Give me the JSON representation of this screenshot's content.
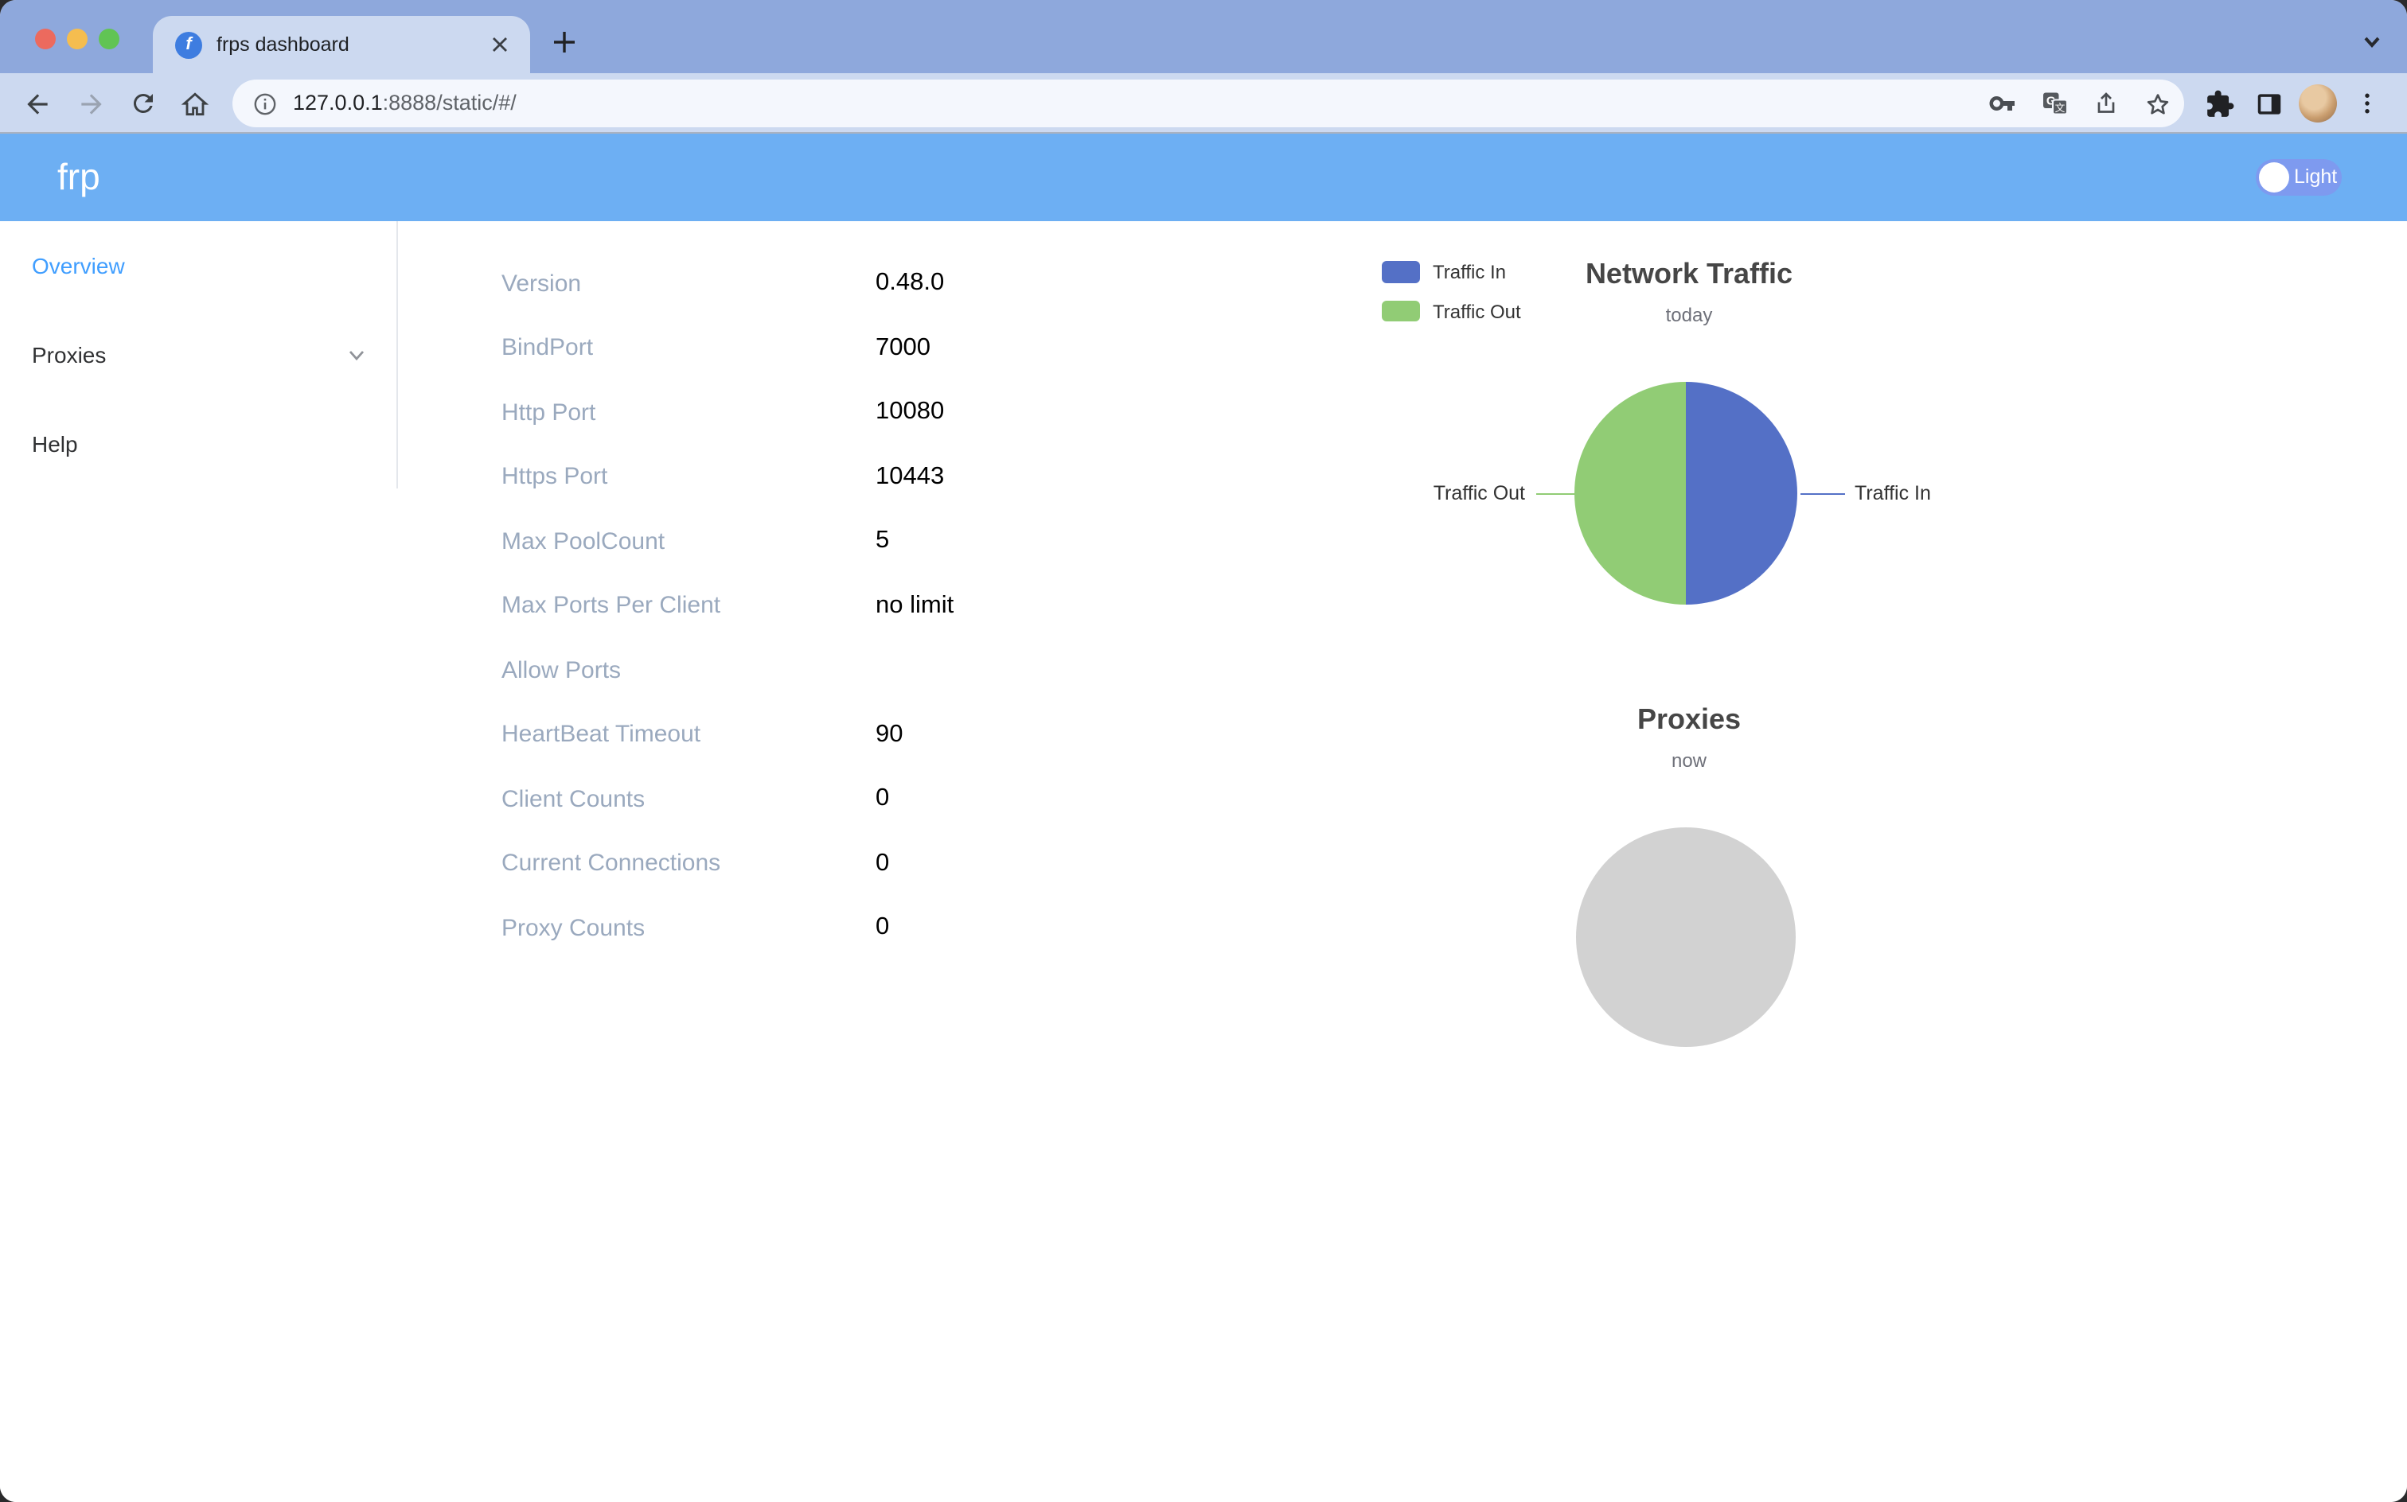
{
  "browser": {
    "tab": {
      "title": "frps dashboard",
      "favicon_letter": "f"
    },
    "url": {
      "host": "127.0.0.1",
      "rest": ":8888/static/#/"
    },
    "toolbar_icons": [
      "back-icon",
      "forward-icon",
      "reload-icon",
      "home-icon",
      "site-info-icon",
      "key-icon",
      "translate-icon",
      "share-icon",
      "bookmark-star-icon",
      "extensions-puzzle-icon",
      "side-panel-icon",
      "profile-avatar",
      "menu-kebab-icon"
    ]
  },
  "header": {
    "brand": "frp",
    "theme_toggle_label": "Light"
  },
  "sidebar": {
    "items": [
      {
        "label": "Overview",
        "active": true,
        "has_submenu": false
      },
      {
        "label": "Proxies",
        "active": false,
        "has_submenu": true
      },
      {
        "label": "Help",
        "active": false,
        "has_submenu": false
      }
    ]
  },
  "overview": {
    "rows": [
      {
        "label": "Version",
        "value": "0.48.0"
      },
      {
        "label": "BindPort",
        "value": "7000"
      },
      {
        "label": "Http Port",
        "value": "10080"
      },
      {
        "label": "Https Port",
        "value": "10443"
      },
      {
        "label": "Max PoolCount",
        "value": "5"
      },
      {
        "label": "Max Ports Per Client",
        "value": "no limit"
      },
      {
        "label": "Allow Ports",
        "value": ""
      },
      {
        "label": "HeartBeat Timeout",
        "value": "90"
      },
      {
        "label": "Client Counts",
        "value": "0"
      },
      {
        "label": "Current Connections",
        "value": "0"
      },
      {
        "label": "Proxy Counts",
        "value": "0"
      }
    ]
  },
  "colors": {
    "traffic_in": "#5470C6",
    "traffic_out": "#91CC75",
    "empty_pie": "#D2D2D2",
    "site_header": "#6DAFF3",
    "active_menu": "#409EFF"
  },
  "chart_data": [
    {
      "type": "pie",
      "title": "Network Traffic",
      "subtitle": "today",
      "legend_position": "left-top",
      "legend": [
        "Traffic In",
        "Traffic Out"
      ],
      "series": [
        {
          "name": "Traffic In",
          "share_percent": 50,
          "color": "#5470C6",
          "callout_label": "Traffic In"
        },
        {
          "name": "Traffic Out",
          "share_percent": 50,
          "color": "#91CC75",
          "callout_label": "Traffic Out"
        }
      ],
      "note": "two equal halves, labels connected by horizontal leader lines"
    },
    {
      "type": "pie",
      "title": "Proxies",
      "subtitle": "now",
      "series": [],
      "placeholder_color": "#D2D2D2",
      "note": "empty gray placeholder circle, no data"
    }
  ]
}
